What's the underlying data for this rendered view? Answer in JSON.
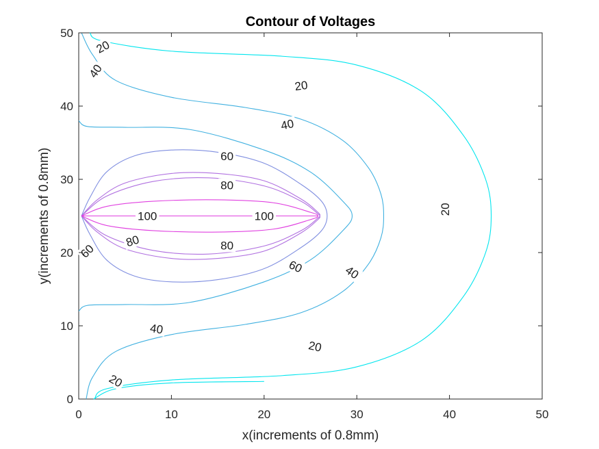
{
  "chart_data": {
    "type": "contour",
    "title": "Contour of Voltages",
    "xlabel": "x(increments of 0.8mm)",
    "ylabel": "y(increments of 0.8mm)",
    "xlim": [
      0,
      50
    ],
    "ylim": [
      0,
      50
    ],
    "xticks": [
      "0",
      "10",
      "20",
      "30",
      "40",
      "50"
    ],
    "yticks": [
      "0",
      "10",
      "20",
      "30",
      "40",
      "50"
    ],
    "grid": false,
    "colors": {
      "20": "#00e5ee",
      "40": "#3fb0e0",
      "60": "#7f8ee0",
      "80": "#b070e0",
      "100": "#e040e0"
    },
    "levels": [
      {
        "level": 20,
        "lines": [
          [
            [
              1.2,
              50
            ],
            [
              2.5,
              48.9
            ],
            [
              10,
              47.5
            ],
            [
              22,
              46.8
            ],
            [
              30,
              45.6
            ],
            [
              37,
              42
            ],
            [
              41.5,
              36
            ],
            [
              43.9,
              30
            ],
            [
              44.5,
              25
            ],
            [
              43.9,
              20
            ],
            [
              41.5,
              14
            ],
            [
              37,
              8
            ],
            [
              30,
              4.4
            ],
            [
              22,
              3.2
            ],
            [
              10,
              2.6
            ],
            [
              3,
              1.4
            ],
            [
              1.7,
              0
            ]
          ],
          [
            [
              1.6,
              0
            ],
            [
              4,
              1.4
            ],
            [
              10,
              2.2
            ],
            [
              20,
              2.4
            ]
          ]
        ]
      },
      {
        "level": 40,
        "lines": [
          [
            [
              0.3,
              50
            ],
            [
              1.5,
              47
            ],
            [
              4,
              43.5
            ],
            [
              10,
              41.2
            ],
            [
              18,
              39.8
            ],
            [
              24,
              38.2
            ],
            [
              28.5,
              35.3
            ],
            [
              31.3,
              31.5
            ],
            [
              32.6,
              28
            ],
            [
              32.9,
              25
            ],
            [
              32.6,
              22
            ],
            [
              31.3,
              18.5
            ],
            [
              28.5,
              14.7
            ],
            [
              24,
              11.8
            ],
            [
              18,
              10.2
            ],
            [
              10,
              8.8
            ],
            [
              4,
              6.5
            ],
            [
              1.5,
              3
            ],
            [
              0.8,
              0
            ]
          ],
          [
            [
              0,
              38
            ],
            [
              1,
              37.2
            ],
            [
              5,
              37.1
            ],
            [
              12,
              36.8
            ],
            [
              20,
              34
            ],
            [
              25,
              31
            ],
            [
              28.5,
              27
            ],
            [
              29.5,
              25
            ],
            [
              28.5,
              23
            ],
            [
              25,
              19
            ],
            [
              20,
              16
            ],
            [
              12,
              13.2
            ],
            [
              5,
              12.9
            ],
            [
              1,
              12.8
            ],
            [
              0,
              12
            ]
          ]
        ]
      },
      {
        "level": 60,
        "lines": [
          [
            [
              0.3,
              25
            ],
            [
              1.2,
              27.5
            ],
            [
              3,
              31
            ],
            [
              6,
              33.2
            ],
            [
              10,
              34
            ],
            [
              15,
              33.7
            ],
            [
              20,
              32.2
            ],
            [
              24,
              29.3
            ],
            [
              26.2,
              27
            ],
            [
              26.8,
              25
            ],
            [
              26.2,
              23
            ],
            [
              24,
              20.7
            ],
            [
              20,
              17.8
            ],
            [
              15,
              16.3
            ],
            [
              10,
              16
            ],
            [
              6,
              16.8
            ],
            [
              3,
              19
            ],
            [
              1.2,
              22.5
            ],
            [
              0.3,
              25
            ]
          ]
        ]
      },
      {
        "level": 80,
        "lines": [
          [
            [
              0.3,
              25
            ],
            [
              2,
              27.2
            ],
            [
              5,
              29.5
            ],
            [
              10,
              30.8
            ],
            [
              15,
              30.8
            ],
            [
              20,
              29.8
            ],
            [
              24,
              27.3
            ],
            [
              25.8,
              25.5
            ],
            [
              26,
              25
            ],
            [
              25.8,
              24.5
            ],
            [
              24,
              22.7
            ],
            [
              20,
              20.2
            ],
            [
              15,
              19.2
            ],
            [
              10,
              19.2
            ],
            [
              5,
              20.5
            ],
            [
              2,
              22.8
            ],
            [
              0.3,
              25
            ]
          ],
          [
            [
              0.3,
              25
            ],
            [
              3,
              27.7
            ],
            [
              8,
              29.7
            ],
            [
              14,
              30.2
            ],
            [
              20,
              29.1
            ],
            [
              24,
              27
            ],
            [
              25.8,
              25.3
            ],
            [
              26,
              25
            ],
            [
              25.8,
              24.7
            ],
            [
              24,
              23
            ],
            [
              20,
              20.9
            ],
            [
              14,
              19.8
            ],
            [
              8,
              20.3
            ],
            [
              3,
              22.3
            ],
            [
              0.3,
              25
            ]
          ]
        ]
      },
      {
        "level": 100,
        "lines": [
          [
            [
              0.3,
              25
            ],
            [
              3,
              26.3
            ],
            [
              8,
              27
            ],
            [
              15,
              27.2
            ],
            [
              21,
              26.8
            ],
            [
              25,
              25.5
            ],
            [
              25.8,
              25
            ],
            [
              25,
              24.5
            ],
            [
              21,
              23.2
            ],
            [
              15,
              22.8
            ],
            [
              8,
              23
            ],
            [
              3,
              23.7
            ],
            [
              0.3,
              25
            ]
          ],
          [
            [
              0.3,
              25
            ],
            [
              25.8,
              25
            ]
          ]
        ]
      }
    ],
    "labels": [
      {
        "text": "20",
        "x": 2.6,
        "y": 48.1,
        "angle": 28
      },
      {
        "text": "20",
        "x": 24,
        "y": 42.8,
        "angle": 8
      },
      {
        "text": "20",
        "x": 39.5,
        "y": 25.9,
        "angle": 90
      },
      {
        "text": "20",
        "x": 25.5,
        "y": 7.2,
        "angle": -12
      },
      {
        "text": "20",
        "x": 4,
        "y": 2.5,
        "angle": -30
      },
      {
        "text": "40",
        "x": 1.8,
        "y": 44.8,
        "angle": 55
      },
      {
        "text": "40",
        "x": 22.5,
        "y": 37.5,
        "angle": 12
      },
      {
        "text": "40",
        "x": 29.5,
        "y": 17.3,
        "angle": -35
      },
      {
        "text": "40",
        "x": 8.4,
        "y": 9.6,
        "angle": -8
      },
      {
        "text": "60",
        "x": 16,
        "y": 33.2,
        "angle": 0
      },
      {
        "text": "60",
        "x": 23.4,
        "y": 18.1,
        "angle": -25
      },
      {
        "text": "60",
        "x": 0.9,
        "y": 20.2,
        "angle": 45
      },
      {
        "text": "80",
        "x": 16,
        "y": 29.2,
        "angle": 0
      },
      {
        "text": "80",
        "x": 16,
        "y": 21,
        "angle": 0
      },
      {
        "text": "80",
        "x": 5.8,
        "y": 21.6,
        "angle": 18
      },
      {
        "text": "100",
        "x": 7.4,
        "y": 25,
        "angle": 0
      },
      {
        "text": "100",
        "x": 20,
        "y": 25,
        "angle": 0
      }
    ]
  }
}
